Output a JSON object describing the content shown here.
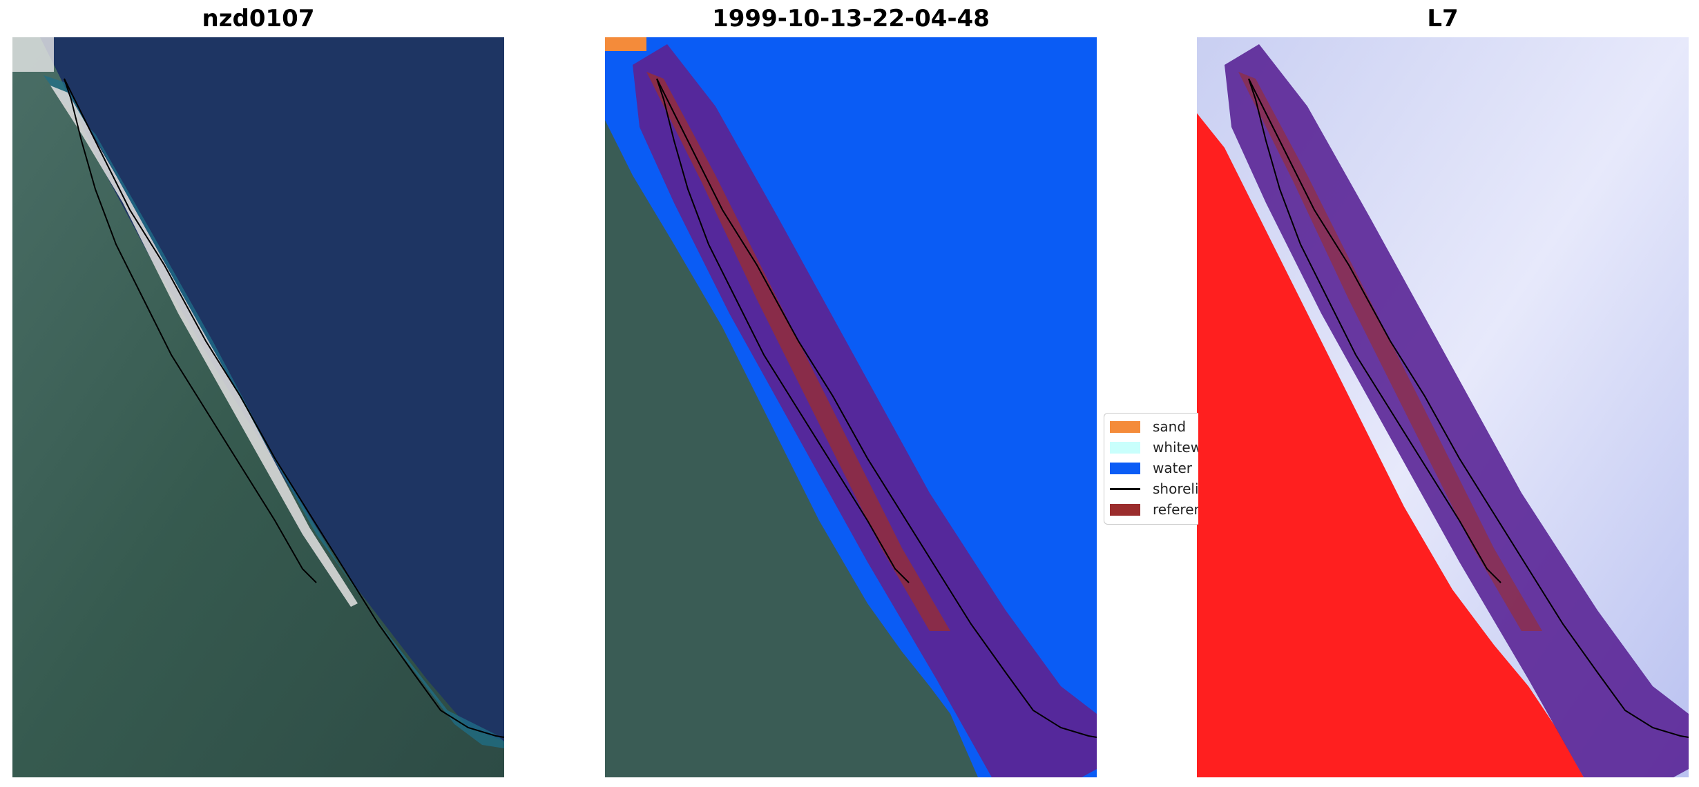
{
  "panels": [
    {
      "title": "nzd0107",
      "view": "rgb-composite"
    },
    {
      "title": "1999-10-13-22-04-48",
      "view": "classification-overlay"
    },
    {
      "title": "L7",
      "view": "index-overlay"
    }
  ],
  "legend": {
    "placement": "center-right of middle panel (clipped by third panel)",
    "items": [
      {
        "label": "sand",
        "color": "#f48b3a",
        "type": "patch"
      },
      {
        "label": "whitewater",
        "color": "#c9fffc",
        "type": "patch"
      },
      {
        "label": "water",
        "color": "#0a5cf5",
        "type": "patch"
      },
      {
        "label": "shoreline",
        "color": "#000000",
        "type": "line"
      },
      {
        "label": "reference",
        "color": "#9b2d2d",
        "type": "patch"
      }
    ]
  },
  "colors": {
    "ocean": "#1e3563",
    "land": "#3a5c55",
    "beach": "#d9d9d9",
    "buffer": "#5a2596",
    "land_index": "#ff1f1f",
    "water_index": "#d7dbf5"
  }
}
